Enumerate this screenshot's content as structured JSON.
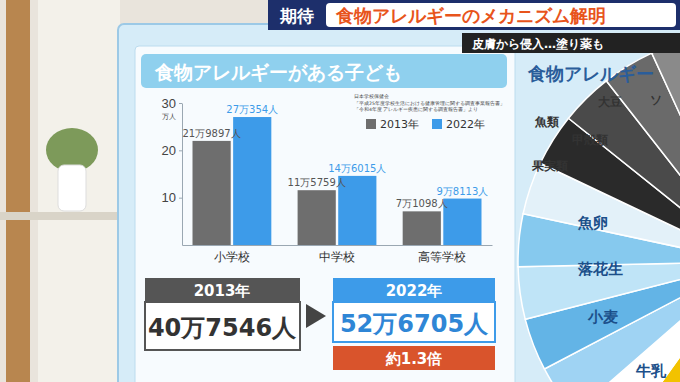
{
  "header": {
    "tag": "期待",
    "headline": "食物アレルギーのメカニズム解明",
    "subheadline": "皮膚から侵入…塗り薬も"
  },
  "chart_data": {
    "type": "bar",
    "title": "食物アレルギーがある子ども",
    "y_label": "万人",
    "categories": [
      "小学校",
      "中学校",
      "高等学校"
    ],
    "series": [
      {
        "name": "2013年",
        "color": "#6e6e6e",
        "values": [
          21.9897,
          11.5759,
          7.1098
        ],
        "value_labels": [
          "21万9897人",
          "11万5759人",
          "7万1098人"
        ]
      },
      {
        "name": "2022年",
        "color": "#3d9be9",
        "values": [
          27.0354,
          14.6015,
          9.8113
        ],
        "value_labels": [
          "27万354人",
          "14万6015人",
          "9万8113人"
        ]
      }
    ],
    "ylim": [
      0,
      30
    ],
    "yticks": [
      10,
      20,
      30
    ],
    "grid": false,
    "legend": "upper right",
    "data_labels": true,
    "source": [
      "日本学校保健会",
      "「平成25年度学校生活における健康管理に関する調査事業報告書」",
      "「令和4年度 アレルギー疾患に関する調査報告書」より"
    ]
  },
  "summary": {
    "from": {
      "label": "2013年",
      "text": "40万7546人"
    },
    "to": {
      "label": "2022年",
      "text": "52万6705人"
    },
    "ratio": "約1.3倍"
  },
  "side_panel": {
    "title": "食物アレルギー",
    "labels": [
      "大豆",
      "ソ",
      "魚類",
      "甲殻類",
      "果実類",
      "魚卵",
      "落花生",
      "小麦",
      "牛乳"
    ]
  }
}
